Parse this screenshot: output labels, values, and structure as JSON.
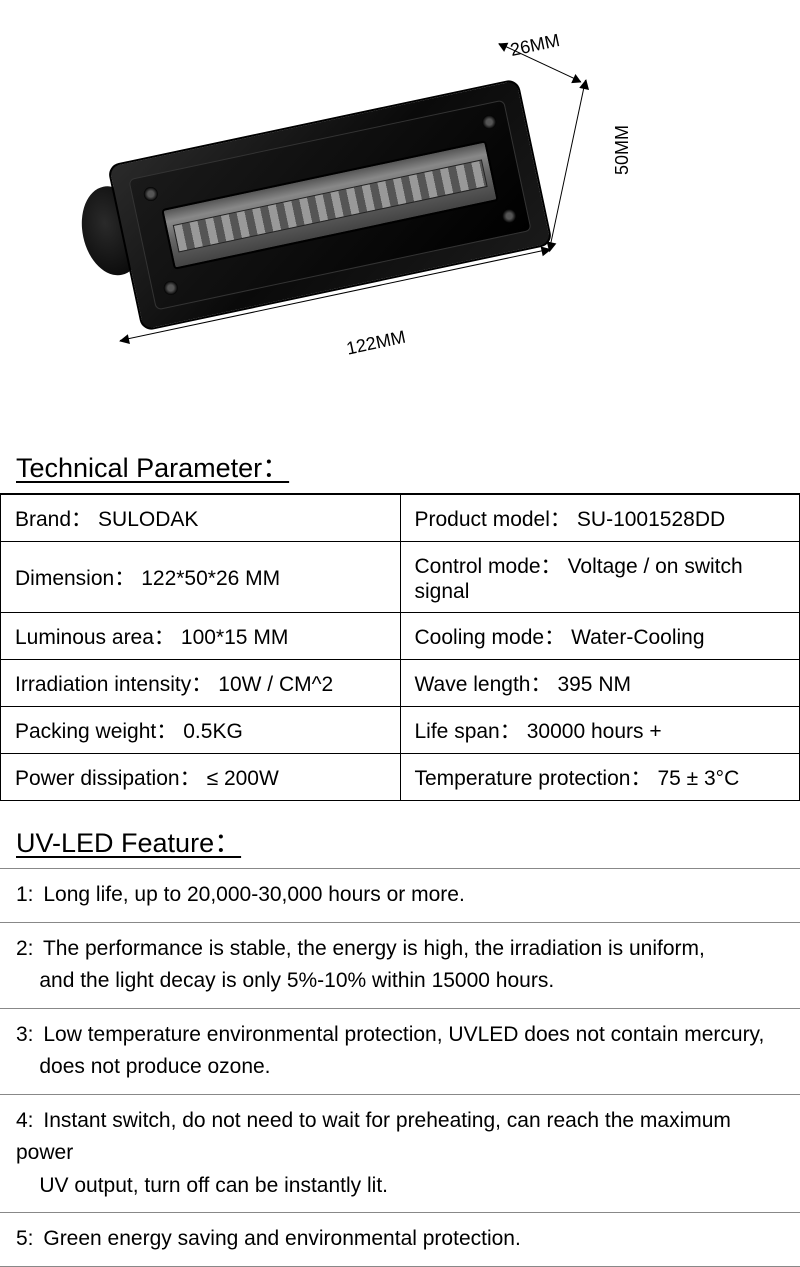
{
  "dimensions": {
    "width_label": "122MM",
    "height_label": "50MM",
    "depth_label": "26MM"
  },
  "tech_heading": "Technical Parameter：",
  "params": {
    "brand_label": "Brand：",
    "brand_value": "SULODAK",
    "model_label": "Product model：",
    "model_value": "SU-1001528DD",
    "dimension_label": "Dimension：",
    "dimension_value": "122*50*26 MM",
    "control_label": "Control mode：",
    "control_value": "Voltage / on switch signal",
    "luminous_label": "Luminous area：",
    "luminous_value": "100*15 MM",
    "cooling_label": "Cooling mode：",
    "cooling_value": "Water-Cooling",
    "irradiation_label": "Irradiation intensity：",
    "irradiation_value": "10W / CM^2",
    "wave_label": "Wave length：",
    "wave_value": "395 NM",
    "packing_label": "Packing weight：",
    "packing_value": "0.5KG",
    "lifespan_label": "Life span：",
    "lifespan_value": "30000 hours +",
    "power_label": "Power dissipation：",
    "power_value": "≤ 200W",
    "temp_label": "Temperature protection：",
    "temp_value": "75 ± 3°C"
  },
  "feature_heading": "UV-LED Feature：",
  "features": {
    "f1_num": "1:",
    "f1": "Long life, up to 20,000-30,000 hours or more.",
    "f2_num": "2:",
    "f2a": "The performance  is stable, the energy is high, the irradiation is uniform,",
    "f2b": "and the light decay is only 5%-10% within 15000 hours.",
    "f3_num": "3:",
    "f3a": "Low temperature environmental protection, UVLED does not contain mercury,",
    "f3b": "does not produce ozone.",
    "f4_num": "4:",
    "f4a": "Instant switch, do not need to wait for preheating, can reach the maximum power",
    "f4b": "UV output, turn off can be instantly lit.",
    "f5_num": "5:",
    "f5": "Green energy saving and environmental protection."
  }
}
